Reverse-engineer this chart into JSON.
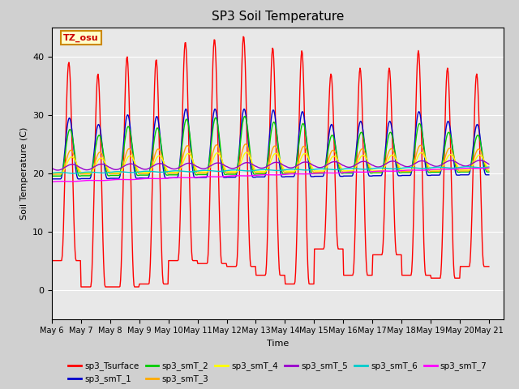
{
  "title": "SP3 Soil Temperature",
  "xlabel": "Time",
  "ylabel": "Soil Temperature (C)",
  "ylim": [
    -5,
    45
  ],
  "xlim": [
    0.0,
    15.5
  ],
  "x_tick_labels": [
    "May 6",
    "May 7",
    "May 8",
    "May 9",
    "May 10",
    "May 11",
    "May 12",
    "May 13",
    "May 14",
    "May 15",
    "May 16",
    "May 17",
    "May 18",
    "May 19",
    "May 20",
    "May 21"
  ],
  "x_tick_pos": [
    0,
    1,
    2,
    3,
    4,
    5,
    6,
    7,
    8,
    9,
    10,
    11,
    12,
    13,
    14,
    15
  ],
  "plot_bg": "#e8e8e8",
  "fig_bg": "#d0d0d0",
  "grid_color": "#ffffff",
  "tz_label": "TZ_osu",
  "legend_entries": [
    {
      "label": "sp3_Tsurface",
      "color": "#ff0000"
    },
    {
      "label": "sp3_smT_1",
      "color": "#0000cc"
    },
    {
      "label": "sp3_smT_2",
      "color": "#00cc00"
    },
    {
      "label": "sp3_smT_3",
      "color": "#ffaa00"
    },
    {
      "label": "sp3_smT_4",
      "color": "#ffff00"
    },
    {
      "label": "sp3_smT_5",
      "color": "#9900cc"
    },
    {
      "label": "sp3_smT_6",
      "color": "#00cccc"
    },
    {
      "label": "sp3_smT_7",
      "color": "#ff00ff"
    }
  ],
  "peak_vals": [
    39,
    37,
    40,
    39.5,
    42.5,
    43,
    43.5,
    41.5,
    41,
    37,
    38,
    38,
    41,
    38,
    37
  ],
  "trough_vals": [
    5,
    0.5,
    0.5,
    1,
    5,
    4.5,
    4,
    2.5,
    1,
    7,
    2.5,
    6,
    2.5,
    2,
    4
  ]
}
